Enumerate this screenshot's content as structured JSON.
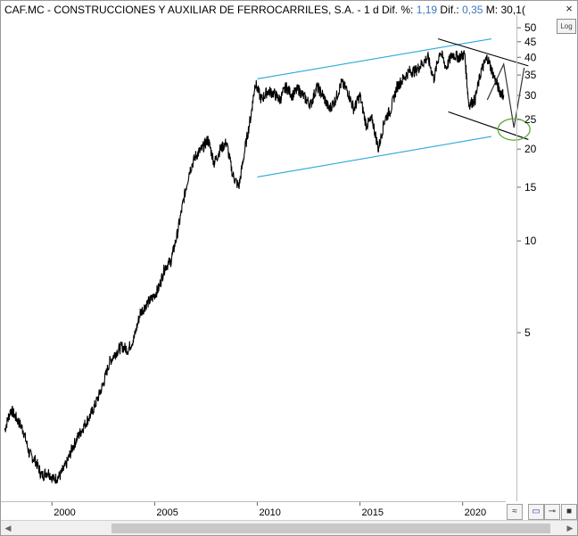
{
  "header": {
    "ticker": "CAF.MC",
    "sep1": " - ",
    "company": "CONSTRUCCIONES Y AUXILIAR DE FERROCARRILES, S.A.",
    "sep2": " - ",
    "period": "1 d",
    "dif_pct_label": "Dif. %:",
    "dif_pct_value": "1,19",
    "dif_label": "Dif.:",
    "dif_value": "0,35",
    "m_label": "M:",
    "m_value": "30,1("
  },
  "log_button": "Log",
  "close_glyph": "×",
  "tools": {
    "trend_glyph": "≈",
    "save_glyph": "▭",
    "pin_glyph": "⊸",
    "color_glyph": "■"
  },
  "colors": {
    "price": "#000000",
    "channel": "#29a8d8",
    "wedge": "#000000",
    "ellipse": "#5aa832",
    "grid": "#bdbdbd"
  },
  "chart_data": {
    "type": "line",
    "title": "CAF.MC - CONSTRUCCIONES Y AUXILIAR DE FERROCARRILES, S.A. - 1 d",
    "xlabel": "",
    "ylabel": "",
    "yscale": "log",
    "xlim": [
      1997.6,
      2022.1
    ],
    "ylim": [
      1.4,
      55
    ],
    "x_ticks": [
      2000,
      2005,
      2010,
      2015,
      2020
    ],
    "x_tick_labels": [
      "2000",
      "2005",
      "2010",
      "2015",
      "2020"
    ],
    "y_ticks": [
      5,
      10,
      15,
      20,
      25,
      30,
      35,
      40,
      45,
      50
    ],
    "y_tick_labels": [
      "5",
      "10",
      "15",
      "20",
      "25",
      "30",
      "35",
      "40",
      "45",
      "50"
    ],
    "grid": false,
    "series": [
      {
        "x": [
          1997.7,
          1998.0,
          1998.3,
          1998.6,
          1998.9,
          1999.2,
          1999.5,
          1999.8,
          2000.1,
          2000.4,
          2000.7,
          2001.0,
          2001.3,
          2001.6,
          2001.9,
          2002.2,
          2002.5,
          2002.8,
          2003.1,
          2003.4,
          2003.7,
          2004.0,
          2004.3,
          2004.6,
          2004.9,
          2005.2,
          2005.5,
          2005.8,
          2006.1,
          2006.4,
          2006.7,
          2007.0,
          2007.3,
          2007.6,
          2007.9,
          2008.2,
          2008.5,
          2008.8,
          2009.1,
          2009.4,
          2009.7,
          2009.9,
          2010.2,
          2010.5,
          2010.8,
          2011.1,
          2011.4,
          2011.7,
          2012.0,
          2012.3,
          2012.6,
          2012.9,
          2013.2,
          2013.5,
          2013.8,
          2014.1,
          2014.4,
          2014.7,
          2015.0,
          2015.3,
          2015.6,
          2015.9,
          2016.2,
          2016.5,
          2016.8,
          2017.1,
          2017.4,
          2017.7,
          2018.0,
          2018.3,
          2018.6,
          2018.9,
          2019.2,
          2019.5,
          2019.8,
          2020.1,
          2020.3,
          2020.6,
          2020.9,
          2021.2,
          2021.5,
          2021.8,
          2022.0
        ],
        "values": [
          2.4,
          2.8,
          2.6,
          2.4,
          2.0,
          1.9,
          1.7,
          1.75,
          1.65,
          1.7,
          1.85,
          2.1,
          2.3,
          2.5,
          2.7,
          3.0,
          3.4,
          4.0,
          4.3,
          4.5,
          4.4,
          4.8,
          5.8,
          6.2,
          6.5,
          7.0,
          8.2,
          8.6,
          10.5,
          13.5,
          17.0,
          19.0,
          20.0,
          21.5,
          18.0,
          20.0,
          21.0,
          16.5,
          15.0,
          20.0,
          26.0,
          33.0,
          29.0,
          31.0,
          30.5,
          29.0,
          32.0,
          30.0,
          31.5,
          29.5,
          28.0,
          32.0,
          30.0,
          27.0,
          29.0,
          33.0,
          31.0,
          27.0,
          30.0,
          24.0,
          25.0,
          20.0,
          25.0,
          27.0,
          32.0,
          34.0,
          36.0,
          36.0,
          38.0,
          40.0,
          34.0,
          42.0,
          37.0,
          41.0,
          40.0,
          41.0,
          28.0,
          29.0,
          36.0,
          40.0,
          35.0,
          31.0,
          30.1
        ]
      }
    ],
    "annotations": {
      "channel_upper": {
        "x": [
          2010.0,
          2021.4
        ],
        "y": [
          34.0,
          46.0
        ]
      },
      "channel_lower": {
        "x": [
          2010.0,
          2021.4
        ],
        "y": [
          16.2,
          22.0
        ]
      },
      "wedge_upper": {
        "x": [
          2018.8,
          2023.2
        ],
        "y": [
          46.0,
          37.5
        ]
      },
      "wedge_lower": {
        "x": [
          2019.3,
          2023.2
        ],
        "y": [
          26.5,
          21.5
        ]
      },
      "projection": {
        "x": [
          2021.2,
          2022.0,
          2022.5,
          2023.0
        ],
        "y": [
          29.0,
          38.0,
          23.5,
          37.0
        ]
      },
      "target_ellipse": {
        "x": 2022.5,
        "y": 23.2
      }
    }
  }
}
